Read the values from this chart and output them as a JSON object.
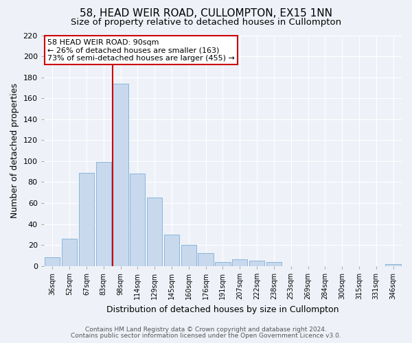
{
  "title": "58, HEAD WEIR ROAD, CULLOMPTON, EX15 1NN",
  "subtitle": "Size of property relative to detached houses in Cullompton",
  "xlabel": "Distribution of detached houses by size in Cullompton",
  "ylabel": "Number of detached properties",
  "bar_labels": [
    "36sqm",
    "52sqm",
    "67sqm",
    "83sqm",
    "98sqm",
    "114sqm",
    "129sqm",
    "145sqm",
    "160sqm",
    "176sqm",
    "191sqm",
    "207sqm",
    "222sqm",
    "238sqm",
    "253sqm",
    "269sqm",
    "284sqm",
    "300sqm",
    "315sqm",
    "331sqm",
    "346sqm"
  ],
  "bar_values": [
    8,
    26,
    89,
    99,
    174,
    88,
    65,
    30,
    20,
    12,
    4,
    6,
    5,
    4,
    0,
    0,
    0,
    0,
    0,
    0,
    2
  ],
  "bar_color": "#c8d9ee",
  "bar_edge_color": "#8ab4d8",
  "ylim": [
    0,
    220
  ],
  "yticks": [
    0,
    20,
    40,
    60,
    80,
    100,
    120,
    140,
    160,
    180,
    200,
    220
  ],
  "marker_bar_index": 4,
  "marker_color": "#cc0000",
  "annotation_title": "58 HEAD WEIR ROAD: 90sqm",
  "annotation_line1": "← 26% of detached houses are smaller (163)",
  "annotation_line2": "73% of semi-detached houses are larger (455) →",
  "annotation_box_facecolor": "#ffffff",
  "annotation_box_edgecolor": "#cc0000",
  "footer_line1": "Contains HM Land Registry data © Crown copyright and database right 2024.",
  "footer_line2": "Contains public sector information licensed under the Open Government Licence v3.0.",
  "fig_facecolor": "#eef2f8",
  "plot_facecolor": "#eef2f8",
  "grid_color": "#ffffff",
  "title_fontsize": 11,
  "subtitle_fontsize": 9.5,
  "ylabel_fontsize": 9,
  "xlabel_fontsize": 9
}
